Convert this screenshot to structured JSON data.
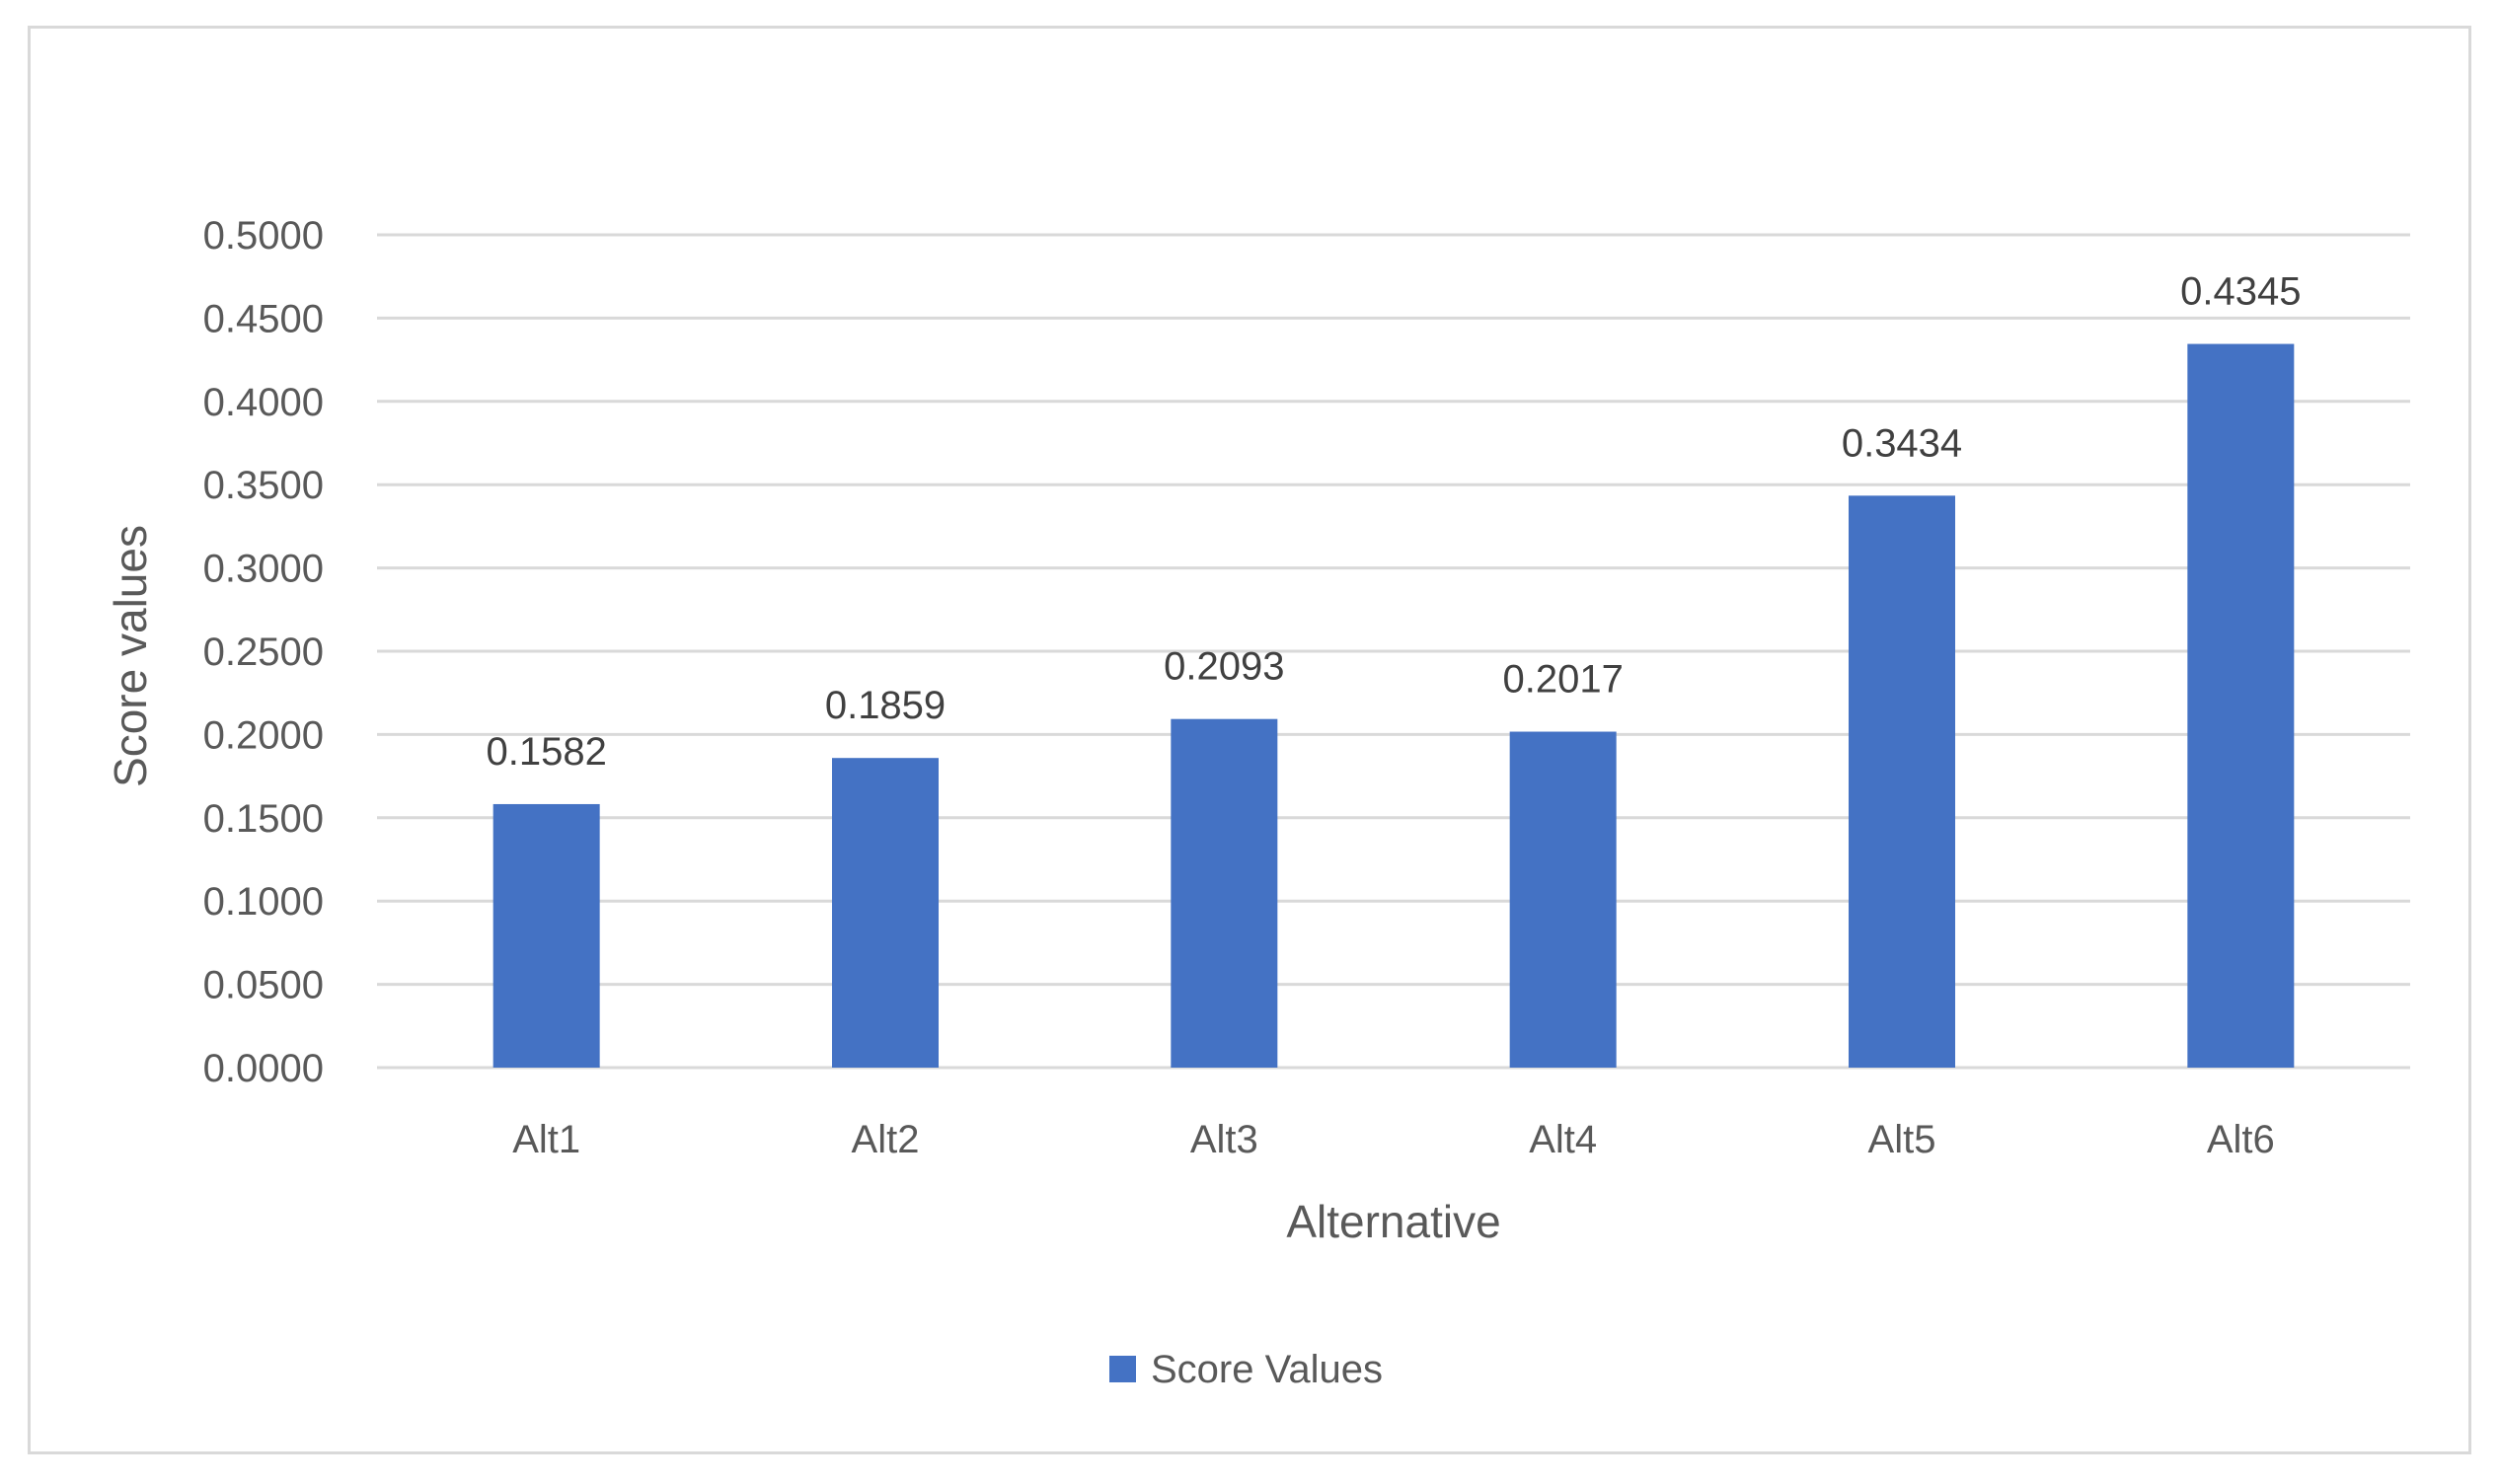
{
  "chart_data": {
    "type": "bar",
    "categories": [
      "Alt1",
      "Alt2",
      "Alt3",
      "Alt4",
      "Alt5",
      "Alt6"
    ],
    "series": [
      {
        "name": "Score Values",
        "values": [
          0.1582,
          0.1859,
          0.2093,
          0.2017,
          0.3434,
          0.4345
        ],
        "value_labels": [
          "0.1582",
          "0.1859",
          "0.2093",
          "0.2017",
          "0.3434",
          "0.4345"
        ],
        "color": "#4472C4"
      }
    ],
    "title": "",
    "xlabel": "Alternative",
    "ylabel": "Score values",
    "ylim": [
      0,
      0.5
    ],
    "yticks": [
      0,
      0.05,
      0.1,
      0.15,
      0.2,
      0.25,
      0.3,
      0.35,
      0.4,
      0.45,
      0.5
    ],
    "ytick_labels": [
      "0.0000",
      "0.0500",
      "0.1000",
      "0.1500",
      "0.2000",
      "0.2500",
      "0.3000",
      "0.3500",
      "0.4000",
      "0.4500",
      "0.5000"
    ],
    "grid": true,
    "gridline_color": "#d9d9d9",
    "legend_position": "bottom"
  }
}
